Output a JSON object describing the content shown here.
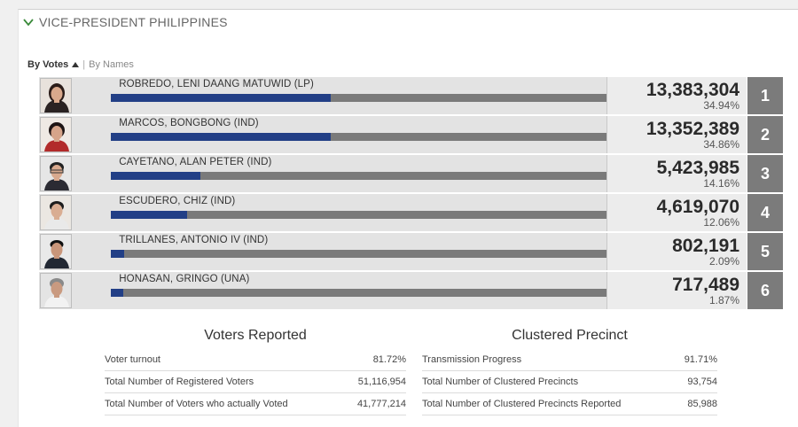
{
  "section": {
    "title": "VICE-PRESIDENT PHILIPPINES"
  },
  "sort": {
    "active": "By Votes",
    "separator": "|",
    "other": "By Names"
  },
  "candidates": [
    {
      "name": "ROBREDO, LENI DAANG MATUWID (LP)",
      "votes": "13,383,304",
      "percent": "34.94%",
      "share": 34.94,
      "rank": "1"
    },
    {
      "name": "MARCOS, BONGBONG (IND)",
      "votes": "13,352,389",
      "percent": "34.86%",
      "share": 34.86,
      "rank": "2"
    },
    {
      "name": "CAYETANO, ALAN PETER (IND)",
      "votes": "5,423,985",
      "percent": "14.16%",
      "share": 14.16,
      "rank": "3"
    },
    {
      "name": "ESCUDERO, CHIZ (IND)",
      "votes": "4,619,070",
      "percent": "12.06%",
      "share": 12.06,
      "rank": "4"
    },
    {
      "name": "TRILLANES, ANTONIO IV (IND)",
      "votes": "802,191",
      "percent": "2.09%",
      "share": 2.09,
      "rank": "5"
    },
    {
      "name": "HONASAN, GRINGO (UNA)",
      "votes": "717,489",
      "percent": "1.87%",
      "share": 1.87,
      "rank": "6"
    }
  ],
  "voters": {
    "title": "Voters Reported",
    "rows": [
      {
        "label": "Voter turnout",
        "value": "81.72%"
      },
      {
        "label": "Total Number of Registered Voters",
        "value": "51,116,954"
      },
      {
        "label": "Total Number of Voters who actually Voted",
        "value": "41,777,214"
      }
    ]
  },
  "precinct": {
    "title": "Clustered Precinct",
    "rows": [
      {
        "label": "Transmission Progress",
        "value": "91.71%"
      },
      {
        "label": "Total Number of Clustered Precincts",
        "value": "93,754"
      },
      {
        "label": "Total Number of Clustered Precincts Reported",
        "value": "85,988"
      }
    ]
  },
  "colors": {
    "bar_fill": "#223f86",
    "bar_track": "#7a7a7a",
    "rank_bg": "#7b7b7b"
  }
}
